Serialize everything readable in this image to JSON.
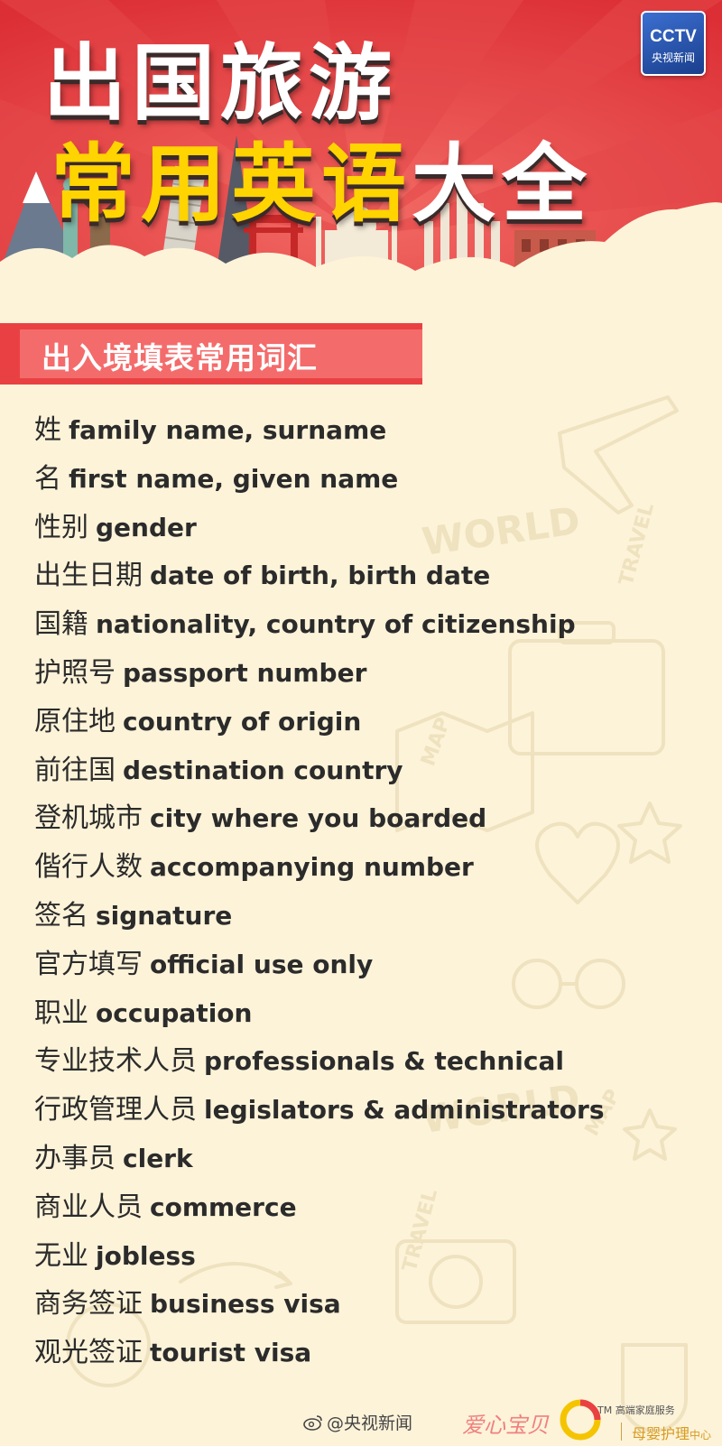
{
  "header": {
    "title_line1": "出国旅游",
    "title_line2_yellow": "常用英语",
    "title_line2_white": "大全",
    "logo_top": "CCTV",
    "logo_bottom": "央视新闻"
  },
  "section": {
    "title": "出入境填表常用词汇"
  },
  "terms": [
    {
      "zh": "姓",
      "en": "family name, surname"
    },
    {
      "zh": "名",
      "en": "first name, given name"
    },
    {
      "zh": "性别",
      "en": "gender"
    },
    {
      "zh": "出生日期",
      "en": "date of birth, birth date"
    },
    {
      "zh": "国籍",
      "en": "nationality, country of citizenship"
    },
    {
      "zh": "护照号",
      "en": "passport number"
    },
    {
      "zh": "原住地",
      "en": "country of origin"
    },
    {
      "zh": "前往国",
      "en": "destination country"
    },
    {
      "zh": "登机城市",
      "en": "city where you boarded"
    },
    {
      "zh": "偕行人数",
      "en": "accompanying number"
    },
    {
      "zh": "签名",
      "en": "signature"
    },
    {
      "zh": "官方填写",
      "en": "official use only"
    },
    {
      "zh": "职业",
      "en": "occupation"
    },
    {
      "zh": "专业技术人员",
      "en": "professionals & technical"
    },
    {
      "zh": "行政管理人员",
      "en": "legislators & administrators"
    },
    {
      "zh": "办事员",
      "en": "clerk"
    },
    {
      "zh": "商业人员",
      "en": "commerce"
    },
    {
      "zh": "无业",
      "en": "jobless"
    },
    {
      "zh": "商务签证",
      "en": "business visa"
    },
    {
      "zh": "观光签证",
      "en": "tourist visa"
    }
  ],
  "footer": {
    "weibo": "@央视新闻",
    "brand1": "爱心宝贝",
    "brand_small": "TM 高端家庭服务",
    "brand2": "母婴护理",
    "brand2_small": "中心"
  },
  "colors": {
    "header_red": "#e8413f",
    "title_yellow": "#ffd400",
    "section_red": "#e94143",
    "background": "#fdf3d9",
    "text": "#2b2b2b"
  },
  "icons": [
    "cctv-logo",
    "weibo-icon",
    "brand-circle-icon"
  ]
}
